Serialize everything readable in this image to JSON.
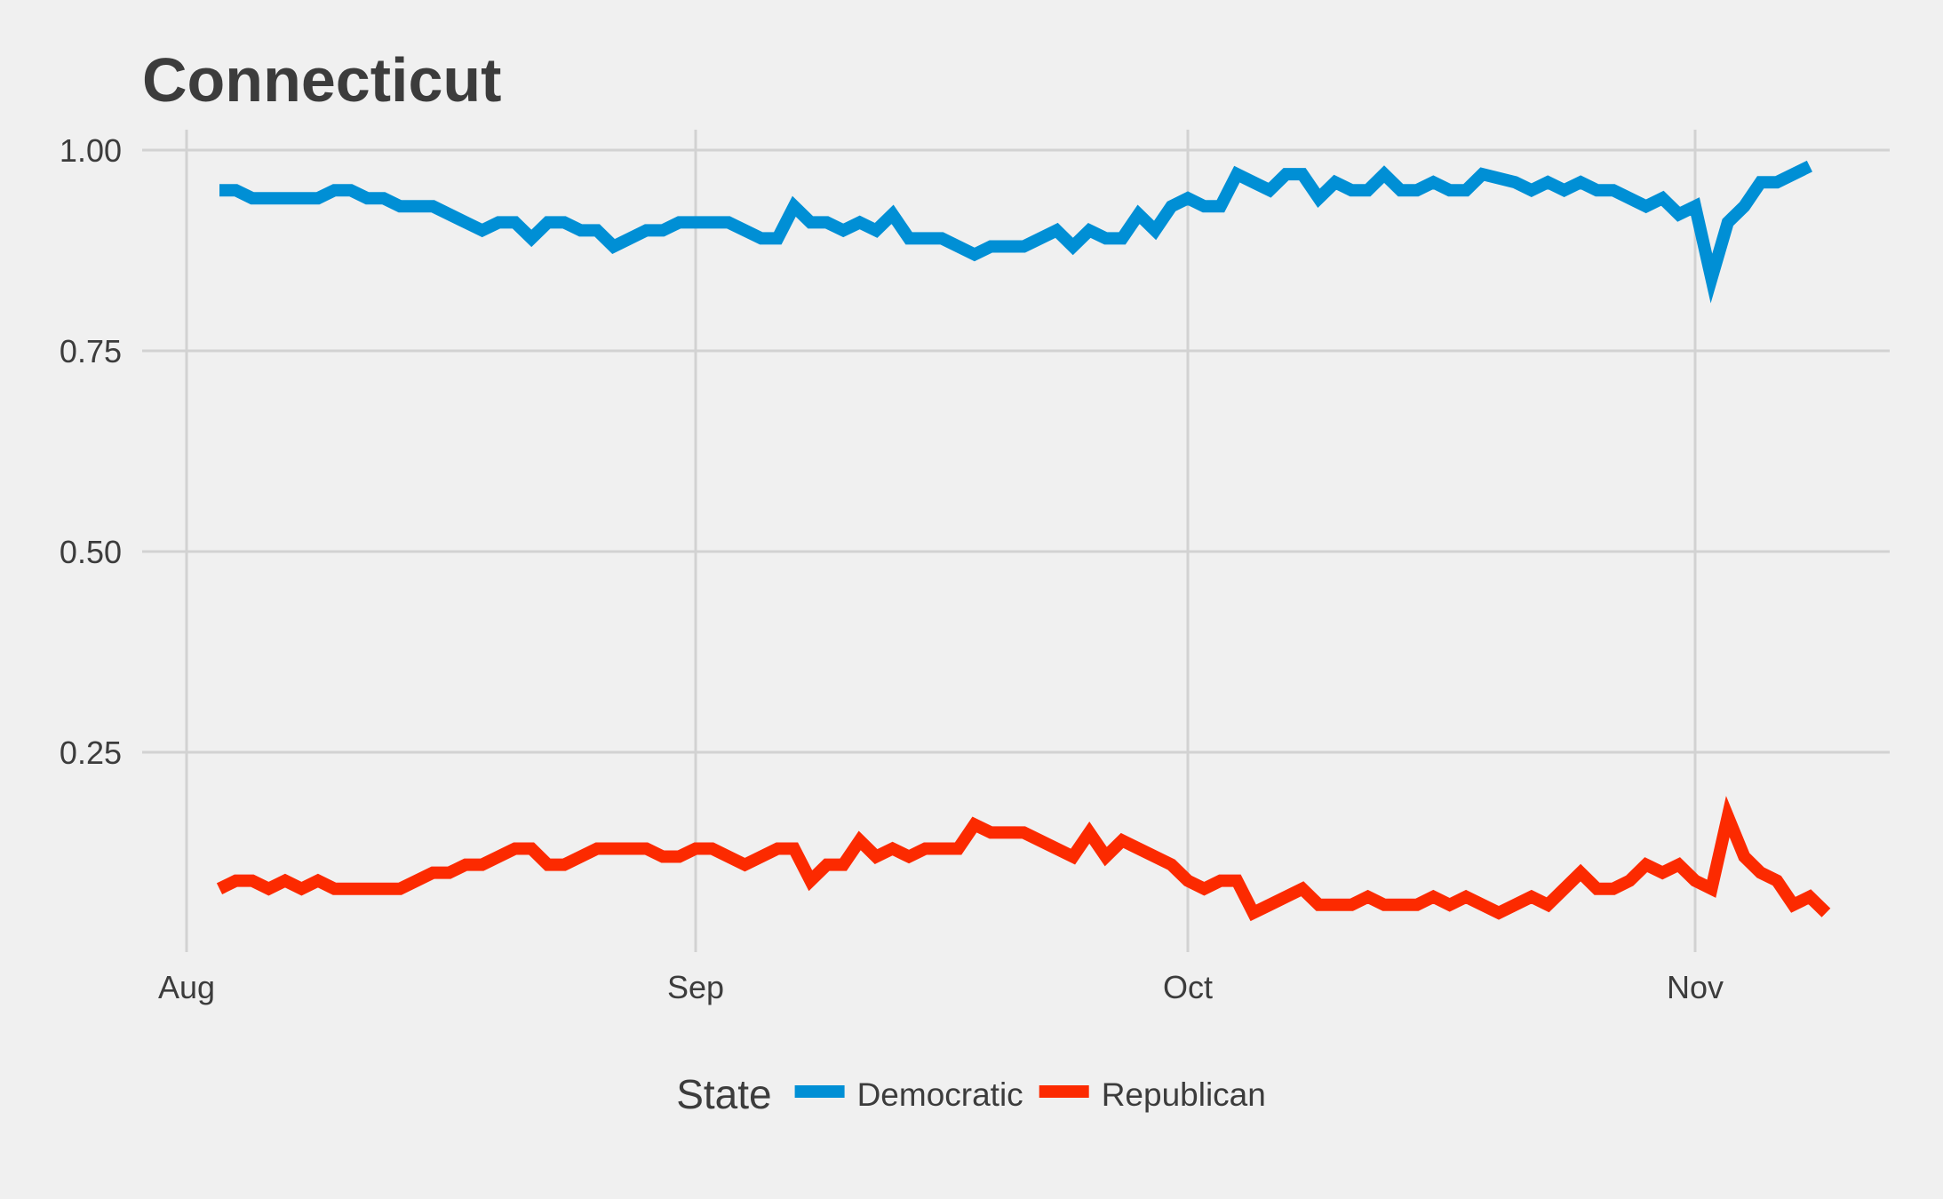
{
  "chart_data": {
    "type": "line",
    "title": "Connecticut",
    "xlabel": "",
    "ylabel": "",
    "x_tick_labels": [
      "Aug",
      "Sep",
      "Oct",
      "Nov"
    ],
    "x_tick_dates": [
      "2016-08-01",
      "2016-09-01",
      "2016-10-01",
      "2016-11-01"
    ],
    "x_range": [
      "2016-08-01",
      "2016-11-09"
    ],
    "y_ticks": [
      0.25,
      0.5,
      0.75,
      1.0
    ],
    "y_tick_labels": [
      "0.25",
      "0.50",
      "0.75",
      "1.00"
    ],
    "ylim": [
      0.02,
      1.03
    ],
    "grid": true,
    "legend": {
      "title": "State",
      "position": "bottom"
    },
    "series": [
      {
        "name": "Democratic",
        "color": "#008fd5",
        "points": [
          [
            "2016-08-03",
            0.95
          ],
          [
            "2016-08-04",
            0.95
          ],
          [
            "2016-08-05",
            0.94
          ],
          [
            "2016-08-07",
            0.94
          ],
          [
            "2016-08-09",
            0.94
          ],
          [
            "2016-08-10",
            0.95
          ],
          [
            "2016-08-11",
            0.95
          ],
          [
            "2016-08-12",
            0.94
          ],
          [
            "2016-08-13",
            0.94
          ],
          [
            "2016-08-14",
            0.93
          ],
          [
            "2016-08-16",
            0.93
          ],
          [
            "2016-08-18",
            0.91
          ],
          [
            "2016-08-19",
            0.9
          ],
          [
            "2016-08-20",
            0.91
          ],
          [
            "2016-08-21",
            0.91
          ],
          [
            "2016-08-22",
            0.89
          ],
          [
            "2016-08-23",
            0.91
          ],
          [
            "2016-08-24",
            0.91
          ],
          [
            "2016-08-25",
            0.9
          ],
          [
            "2016-08-26",
            0.9
          ],
          [
            "2016-08-27",
            0.88
          ],
          [
            "2016-08-29",
            0.9
          ],
          [
            "2016-08-30",
            0.9
          ],
          [
            "2016-08-31",
            0.91
          ],
          [
            "2016-09-02",
            0.91
          ],
          [
            "2016-09-03",
            0.91
          ],
          [
            "2016-09-05",
            0.89
          ],
          [
            "2016-09-06",
            0.89
          ],
          [
            "2016-09-07",
            0.93
          ],
          [
            "2016-09-08",
            0.91
          ],
          [
            "2016-09-09",
            0.91
          ],
          [
            "2016-09-10",
            0.9
          ],
          [
            "2016-09-11",
            0.91
          ],
          [
            "2016-09-12",
            0.9
          ],
          [
            "2016-09-13",
            0.92
          ],
          [
            "2016-09-14",
            0.89
          ],
          [
            "2016-09-16",
            0.89
          ],
          [
            "2016-09-18",
            0.87
          ],
          [
            "2016-09-19",
            0.88
          ],
          [
            "2016-09-21",
            0.88
          ],
          [
            "2016-09-23",
            0.9
          ],
          [
            "2016-09-24",
            0.88
          ],
          [
            "2016-09-25",
            0.9
          ],
          [
            "2016-09-26",
            0.89
          ],
          [
            "2016-09-27",
            0.89
          ],
          [
            "2016-09-28",
            0.92
          ],
          [
            "2016-09-29",
            0.9
          ],
          [
            "2016-09-30",
            0.93
          ],
          [
            "2016-10-01",
            0.94
          ],
          [
            "2016-10-02",
            0.93
          ],
          [
            "2016-10-03",
            0.93
          ],
          [
            "2016-10-04",
            0.97
          ],
          [
            "2016-10-05",
            0.96
          ],
          [
            "2016-10-06",
            0.95
          ],
          [
            "2016-10-07",
            0.97
          ],
          [
            "2016-10-08",
            0.97
          ],
          [
            "2016-10-09",
            0.94
          ],
          [
            "2016-10-10",
            0.96
          ],
          [
            "2016-10-11",
            0.95
          ],
          [
            "2016-10-12",
            0.95
          ],
          [
            "2016-10-13",
            0.97
          ],
          [
            "2016-10-14",
            0.95
          ],
          [
            "2016-10-15",
            0.95
          ],
          [
            "2016-10-16",
            0.96
          ],
          [
            "2016-10-17",
            0.95
          ],
          [
            "2016-10-18",
            0.95
          ],
          [
            "2016-10-19",
            0.97
          ],
          [
            "2016-10-21",
            0.96
          ],
          [
            "2016-10-22",
            0.95
          ],
          [
            "2016-10-23",
            0.96
          ],
          [
            "2016-10-24",
            0.95
          ],
          [
            "2016-10-25",
            0.96
          ],
          [
            "2016-10-26",
            0.95
          ],
          [
            "2016-10-27",
            0.95
          ],
          [
            "2016-10-29",
            0.93
          ],
          [
            "2016-10-30",
            0.94
          ],
          [
            "2016-10-31",
            0.92
          ],
          [
            "2016-11-01",
            0.93
          ],
          [
            "2016-11-02",
            0.84
          ],
          [
            "2016-11-03",
            0.91
          ],
          [
            "2016-11-04",
            0.93
          ],
          [
            "2016-11-05",
            0.96
          ],
          [
            "2016-11-06",
            0.96
          ],
          [
            "2016-11-08",
            0.98
          ]
        ]
      },
      {
        "name": "Republican",
        "color": "#fc2a00",
        "points": [
          [
            "2016-08-03",
            0.08
          ],
          [
            "2016-08-04",
            0.09
          ],
          [
            "2016-08-05",
            0.09
          ],
          [
            "2016-08-06",
            0.08
          ],
          [
            "2016-08-07",
            0.09
          ],
          [
            "2016-08-08",
            0.08
          ],
          [
            "2016-08-09",
            0.09
          ],
          [
            "2016-08-10",
            0.08
          ],
          [
            "2016-08-12",
            0.08
          ],
          [
            "2016-08-14",
            0.08
          ],
          [
            "2016-08-16",
            0.1
          ],
          [
            "2016-08-17",
            0.1
          ],
          [
            "2016-08-18",
            0.11
          ],
          [
            "2016-08-19",
            0.11
          ],
          [
            "2016-08-21",
            0.13
          ],
          [
            "2016-08-22",
            0.13
          ],
          [
            "2016-08-23",
            0.11
          ],
          [
            "2016-08-24",
            0.11
          ],
          [
            "2016-08-26",
            0.13
          ],
          [
            "2016-08-29",
            0.13
          ],
          [
            "2016-08-30",
            0.12
          ],
          [
            "2016-08-31",
            0.12
          ],
          [
            "2016-09-01",
            0.13
          ],
          [
            "2016-09-02",
            0.13
          ],
          [
            "2016-09-04",
            0.11
          ],
          [
            "2016-09-06",
            0.13
          ],
          [
            "2016-09-07",
            0.13
          ],
          [
            "2016-09-08",
            0.09
          ],
          [
            "2016-09-09",
            0.11
          ],
          [
            "2016-09-10",
            0.11
          ],
          [
            "2016-09-11",
            0.14
          ],
          [
            "2016-09-12",
            0.12
          ],
          [
            "2016-09-13",
            0.13
          ],
          [
            "2016-09-14",
            0.12
          ],
          [
            "2016-09-15",
            0.13
          ],
          [
            "2016-09-17",
            0.13
          ],
          [
            "2016-09-18",
            0.16
          ],
          [
            "2016-09-19",
            0.15
          ],
          [
            "2016-09-21",
            0.15
          ],
          [
            "2016-09-24",
            0.12
          ],
          [
            "2016-09-25",
            0.15
          ],
          [
            "2016-09-26",
            0.12
          ],
          [
            "2016-09-27",
            0.14
          ],
          [
            "2016-09-30",
            0.11
          ],
          [
            "2016-10-01",
            0.09
          ],
          [
            "2016-10-02",
            0.08
          ],
          [
            "2016-10-03",
            0.09
          ],
          [
            "2016-10-04",
            0.09
          ],
          [
            "2016-10-05",
            0.05
          ],
          [
            "2016-10-06",
            0.06
          ],
          [
            "2016-10-08",
            0.08
          ],
          [
            "2016-10-09",
            0.06
          ],
          [
            "2016-10-11",
            0.06
          ],
          [
            "2016-10-12",
            0.07
          ],
          [
            "2016-10-13",
            0.06
          ],
          [
            "2016-10-15",
            0.06
          ],
          [
            "2016-10-16",
            0.07
          ],
          [
            "2016-10-17",
            0.06
          ],
          [
            "2016-10-18",
            0.07
          ],
          [
            "2016-10-20",
            0.05
          ],
          [
            "2016-10-22",
            0.07
          ],
          [
            "2016-10-23",
            0.06
          ],
          [
            "2016-10-25",
            0.1
          ],
          [
            "2016-10-26",
            0.08
          ],
          [
            "2016-10-27",
            0.08
          ],
          [
            "2016-10-28",
            0.09
          ],
          [
            "2016-10-29",
            0.11
          ],
          [
            "2016-10-30",
            0.1
          ],
          [
            "2016-10-31",
            0.11
          ],
          [
            "2016-11-01",
            0.09
          ],
          [
            "2016-11-02",
            0.08
          ],
          [
            "2016-11-03",
            0.17
          ],
          [
            "2016-11-04",
            0.12
          ],
          [
            "2016-11-05",
            0.1
          ],
          [
            "2016-11-06",
            0.09
          ],
          [
            "2016-11-07",
            0.06
          ],
          [
            "2016-11-08",
            0.07
          ],
          [
            "2016-11-09",
            0.05
          ]
        ]
      }
    ]
  }
}
